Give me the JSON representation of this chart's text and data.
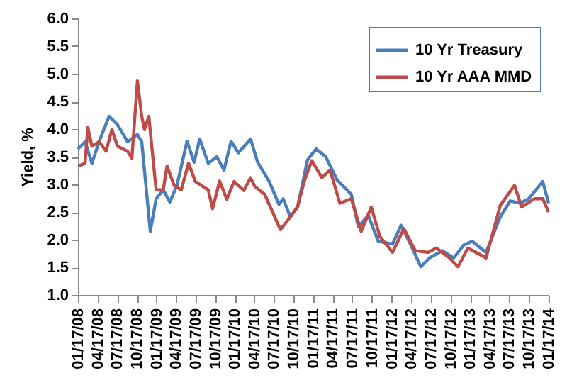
{
  "chart_data": {
    "type": "line",
    "ylabel": "Yield, %",
    "series": [
      {
        "name": "10 Yr Treasury",
        "color": "#4a7ebb",
        "x": [
          "2008-01-17",
          "2008-02-19",
          "2008-03-22",
          "2008-04-25",
          "2008-06-10",
          "2008-07-19",
          "2008-09-04",
          "2008-10-20",
          "2008-11-09",
          "2008-12-19",
          "2009-01-15",
          "2009-02-17",
          "2009-03-20",
          "2009-04-22",
          "2009-06-08",
          "2009-07-11",
          "2009-08-06",
          "2009-09-15",
          "2009-10-25",
          "2009-11-27",
          "2009-12-30",
          "2010-02-02",
          "2010-03-31",
          "2010-05-03",
          "2010-06-25",
          "2010-08-10",
          "2010-08-30",
          "2010-10-02",
          "2010-11-05",
          "2010-12-21",
          "2011-01-30",
          "2011-03-16",
          "2011-05-08",
          "2011-07-13",
          "2011-08-15",
          "2011-09-30",
          "2011-11-16",
          "2012-01-21",
          "2012-03-01",
          "2012-04-16",
          "2012-06-01",
          "2012-07-11",
          "2012-09-09",
          "2012-11-01",
          "2012-12-17",
          "2013-01-26",
          "2013-04-01",
          "2013-06-06",
          "2013-07-22",
          "2013-09-07",
          "2013-10-16",
          "2013-12-21",
          "2014-01-17"
        ],
        "values": [
          3.64,
          3.77,
          3.38,
          3.78,
          4.23,
          4.08,
          3.77,
          3.9,
          3.77,
          2.15,
          2.74,
          2.9,
          2.68,
          2.98,
          3.78,
          3.4,
          3.82,
          3.38,
          3.5,
          3.26,
          3.78,
          3.57,
          3.82,
          3.4,
          3.06,
          2.64,
          2.74,
          2.41,
          2.59,
          3.44,
          3.64,
          3.5,
          3.08,
          2.82,
          2.23,
          2.44,
          1.97,
          1.92,
          2.26,
          1.9,
          1.51,
          1.67,
          1.8,
          1.67,
          1.9,
          1.97,
          1.77,
          2.41,
          2.7,
          2.66,
          2.74,
          3.05,
          2.66
        ]
      },
      {
        "name": "10 Yr AAA MMD",
        "color": "#be4b48",
        "x": [
          "2008-01-17",
          "2008-02-19",
          "2008-03-03",
          "2008-03-22",
          "2008-04-25",
          "2008-05-27",
          "2008-06-23",
          "2008-07-19",
          "2008-09-04",
          "2008-09-24",
          "2008-10-20",
          "2008-11-09",
          "2008-11-22",
          "2008-12-12",
          "2009-01-15",
          "2009-02-17",
          "2009-03-07",
          "2009-04-09",
          "2009-05-12",
          "2009-06-15",
          "2009-07-17",
          "2009-09-15",
          "2009-10-05",
          "2009-11-07",
          "2009-12-10",
          "2010-01-13",
          "2010-02-28",
          "2010-03-31",
          "2010-04-20",
          "2010-06-05",
          "2010-08-17",
          "2010-10-02",
          "2010-11-05",
          "2010-12-08",
          "2011-01-10",
          "2011-02-26",
          "2011-04-05",
          "2011-05-21",
          "2011-07-13",
          "2011-08-28",
          "2011-10-14",
          "2011-11-23",
          "2012-01-21",
          "2012-03-14",
          "2012-05-06",
          "2012-07-04",
          "2012-08-13",
          "2012-10-12",
          "2012-11-21",
          "2013-01-06",
          "2013-04-01",
          "2013-06-06",
          "2013-08-11",
          "2013-09-14",
          "2013-11-12",
          "2013-12-21",
          "2014-01-17"
        ],
        "values": [
          3.33,
          3.38,
          4.03,
          3.69,
          3.77,
          3.6,
          3.99,
          3.69,
          3.6,
          3.47,
          4.87,
          4.23,
          3.99,
          4.23,
          2.9,
          2.9,
          3.33,
          2.98,
          2.9,
          3.38,
          3.05,
          2.9,
          2.56,
          3.06,
          2.73,
          3.05,
          2.89,
          3.12,
          2.96,
          2.82,
          2.18,
          2.41,
          2.6,
          3.08,
          3.43,
          3.12,
          3.26,
          2.66,
          2.74,
          2.15,
          2.59,
          2.06,
          1.77,
          2.2,
          1.8,
          1.77,
          1.85,
          1.67,
          1.51,
          1.85,
          1.67,
          2.62,
          2.98,
          2.59,
          2.74,
          2.74,
          2.5
        ]
      }
    ],
    "xlim": [
      "2008-01-17",
      "2014-01-17"
    ],
    "xticks": [
      {
        "value": "2008-01-17",
        "label": "01/17/08"
      },
      {
        "value": "2008-04-17",
        "label": "04/17/08"
      },
      {
        "value": "2008-07-17",
        "label": "07/17/08"
      },
      {
        "value": "2008-10-17",
        "label": "10/17/08"
      },
      {
        "value": "2009-01-17",
        "label": "01/17/09"
      },
      {
        "value": "2009-04-17",
        "label": "04/17/09"
      },
      {
        "value": "2009-07-17",
        "label": "07/17/09"
      },
      {
        "value": "2009-10-17",
        "label": "10/17/09"
      },
      {
        "value": "2010-01-17",
        "label": "01/17/10"
      },
      {
        "value": "2010-04-17",
        "label": "04/17/10"
      },
      {
        "value": "2010-07-17",
        "label": "07/17/10"
      },
      {
        "value": "2010-10-17",
        "label": "10/17/10"
      },
      {
        "value": "2011-01-17",
        "label": "01/17/11"
      },
      {
        "value": "2011-04-17",
        "label": "04/17/11"
      },
      {
        "value": "2011-07-17",
        "label": "07/17/11"
      },
      {
        "value": "2011-10-17",
        "label": "10/17/11"
      },
      {
        "value": "2012-01-17",
        "label": "01/17/12"
      },
      {
        "value": "2012-04-17",
        "label": "04/17/12"
      },
      {
        "value": "2012-07-17",
        "label": "07/17/12"
      },
      {
        "value": "2012-10-17",
        "label": "10/17/12"
      },
      {
        "value": "2013-01-17",
        "label": "01/17/13"
      },
      {
        "value": "2013-04-17",
        "label": "04/17/13"
      },
      {
        "value": "2013-07-17",
        "label": "07/17/13"
      },
      {
        "value": "2013-10-17",
        "label": "10/17/13"
      },
      {
        "value": "2014-01-17",
        "label": "01/17/14"
      }
    ],
    "ylim": [
      1.0,
      6.0
    ],
    "yticks": [
      {
        "value": 1.0,
        "label": "1.0"
      },
      {
        "value": 1.5,
        "label": "1.5"
      },
      {
        "value": 2.0,
        "label": "2.0"
      },
      {
        "value": 2.5,
        "label": "2.5"
      },
      {
        "value": 3.0,
        "label": "3.0"
      },
      {
        "value": 3.5,
        "label": "3.5"
      },
      {
        "value": 4.0,
        "label": "4.0"
      },
      {
        "value": 4.5,
        "label": "4.5"
      },
      {
        "value": 5.0,
        "label": "5.0"
      },
      {
        "value": 5.5,
        "label": "5.5"
      },
      {
        "value": 6.0,
        "label": "6.0"
      }
    ],
    "grid": false,
    "legend": "top right",
    "line_style": "solid"
  }
}
